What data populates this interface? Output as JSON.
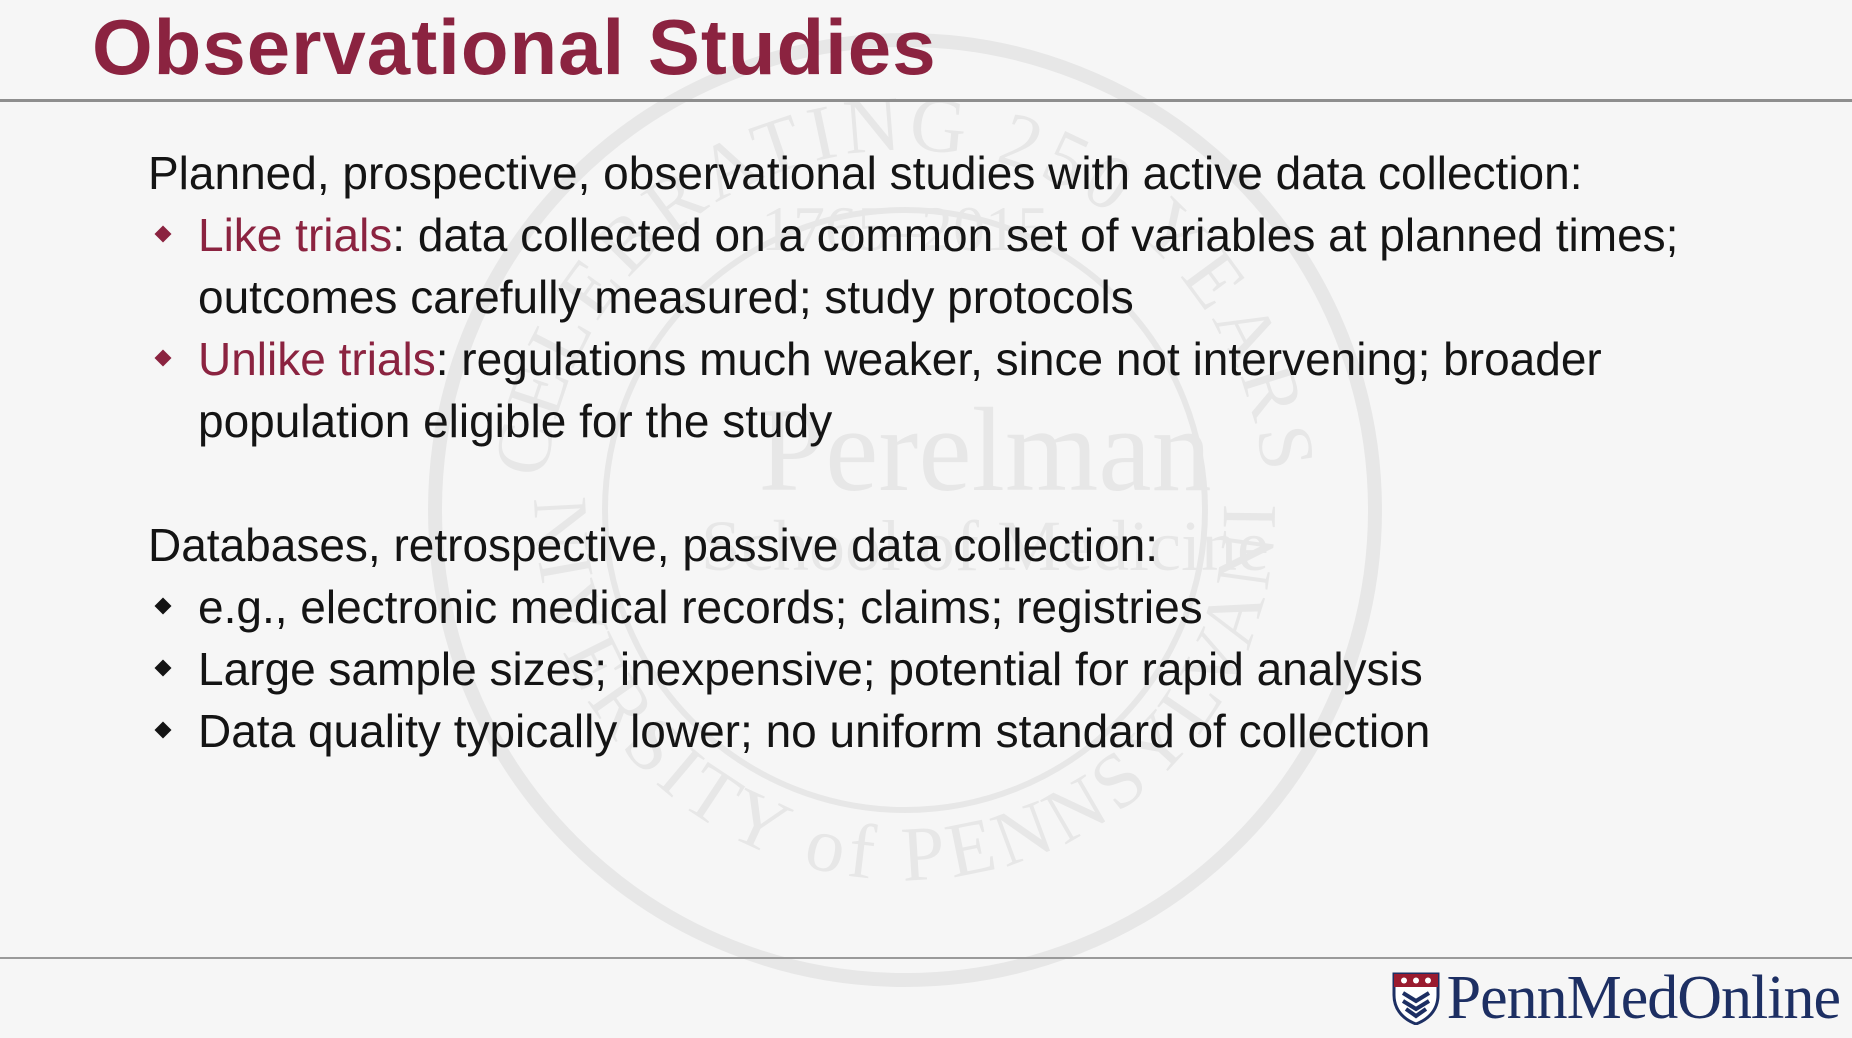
{
  "slide": {
    "title": "Observational Studies",
    "section1": {
      "heading": "Planned, prospective, observational studies with active data collection:",
      "bullets": [
        {
          "lead": "Like trials",
          "text": ": data collected on a common set of variables at planned times; outcomes carefully measured; study protocols"
        },
        {
          "lead": "Unlike trials",
          "text": ": regulations much weaker, since not intervening; broader population eligible for the study"
        }
      ]
    },
    "section2": {
      "heading": "Databases, retrospective, passive data collection:",
      "bullets": [
        {
          "text": "e.g., electronic medical records; claims; registries"
        },
        {
          "text": "Large sample sizes; inexpensive; potential for rapid analysis"
        },
        {
          "text": "Data quality typically lower; no uniform standard of collection"
        }
      ]
    }
  },
  "branding": {
    "logo_text_1": "PennMed",
    "logo_text_2": "Online",
    "watermark_text": [
      "CELEBRATING 250 YEARS",
      "1765–2015",
      "Perelman",
      "School of Medicine",
      "UNIVERSITY of PENNSYLVANIA"
    ]
  },
  "colors": {
    "accent": "#8b2340",
    "logo_blue": "#1d2f63",
    "background": "#f6f6f6"
  },
  "icons": {
    "bullet": "diamond-bullet-icon",
    "logo": "penn-shield-icon"
  }
}
